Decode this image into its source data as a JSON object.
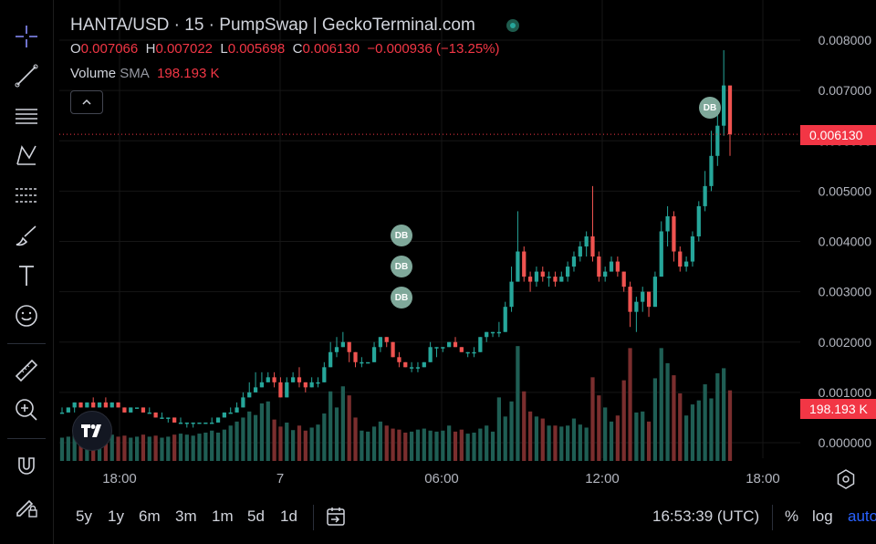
{
  "header": {
    "title": "HANTA/USD · 15 · PumpSwap | GeckoTerminal.com",
    "ohlc": [
      {
        "label": "O",
        "value": "0.007066"
      },
      {
        "label": "H",
        "value": "0.007022"
      },
      {
        "label": "L",
        "value": "0.005698"
      },
      {
        "label": "C",
        "value": "0.006130"
      }
    ],
    "change": "−0.000936 (−13.25%)",
    "volume_label": "Volume",
    "volume_sma_label": "SMA",
    "volume_value": "198.193 K"
  },
  "price_tag": "0.006130",
  "volume_tag": "198.193 K",
  "badges": [
    "DB",
    "DB",
    "DB",
    "DB"
  ],
  "colors": {
    "up": "#26a69a",
    "down": "#ef5350",
    "vol_up": "#1f5e54",
    "vol_down": "#7a2e2e",
    "badge": "#7fa89a"
  },
  "bottom_bar": {
    "ranges": [
      "5y",
      "1y",
      "6m",
      "3m",
      "1m",
      "5d",
      "1d"
    ],
    "time": "16:53:39 (UTC)",
    "percent": "%",
    "log": "log",
    "auto": "auto"
  },
  "chart_data": {
    "type": "candlestick",
    "title": "HANTA/USD · 15 · PumpSwap",
    "y_ticks": [
      "0.008000",
      "0.007000",
      "0.006000",
      "0.005000",
      "0.004000",
      "0.003000",
      "0.002000",
      "0.001000",
      "0.000000"
    ],
    "x_ticks": [
      "18:00",
      "7",
      "06:00",
      "12:00",
      "18:00"
    ],
    "ylim": [
      0.0,
      0.008
    ],
    "last_price": 0.00613,
    "grid": true,
    "candles": [
      [
        0.0006,
        0.0006,
        0.0007,
        0.0006
      ],
      [
        0.0006,
        0.0007,
        0.0007,
        0.0006
      ],
      [
        0.0007,
        0.0008,
        0.0008,
        0.0006
      ],
      [
        0.0008,
        0.0007,
        0.0008,
        0.0007
      ],
      [
        0.0007,
        0.0008,
        0.0008,
        0.0007
      ],
      [
        0.0008,
        0.0007,
        0.0009,
        0.0007
      ],
      [
        0.0007,
        0.0008,
        0.0008,
        0.0007
      ],
      [
        0.0008,
        0.0007,
        0.0009,
        0.0007
      ],
      [
        0.0007,
        0.0008,
        0.0008,
        0.0007
      ],
      [
        0.0008,
        0.0007,
        0.0008,
        0.0007
      ],
      [
        0.0007,
        0.0006,
        0.0007,
        0.0006
      ],
      [
        0.0006,
        0.0007,
        0.0007,
        0.0006
      ],
      [
        0.0007,
        0.0007,
        0.0007,
        0.0007
      ],
      [
        0.0007,
        0.0006,
        0.0007,
        0.0006
      ],
      [
        0.0006,
        0.0006,
        0.0007,
        0.0006
      ],
      [
        0.0006,
        0.0005,
        0.0006,
        0.0005
      ],
      [
        0.0005,
        0.0005,
        0.0006,
        0.0005
      ],
      [
        0.0005,
        0.0005,
        0.0005,
        0.0004
      ],
      [
        0.0005,
        0.0004,
        0.0005,
        0.0004
      ],
      [
        0.0004,
        0.0004,
        0.0005,
        0.0004
      ],
      [
        0.0004,
        0.0004,
        0.0004,
        0.0003
      ],
      [
        0.0004,
        0.0004,
        0.0004,
        0.0003
      ],
      [
        0.0004,
        0.0004,
        0.0004,
        0.0004
      ],
      [
        0.0004,
        0.0004,
        0.0004,
        0.0004
      ],
      [
        0.0004,
        0.0004,
        0.0005,
        0.0004
      ],
      [
        0.0004,
        0.0005,
        0.0005,
        0.0004
      ],
      [
        0.0005,
        0.0006,
        0.0006,
        0.0005
      ],
      [
        0.0006,
        0.0006,
        0.0007,
        0.0006
      ],
      [
        0.0006,
        0.0007,
        0.0008,
        0.0006
      ],
      [
        0.0007,
        0.0009,
        0.001,
        0.0007
      ],
      [
        0.0009,
        0.001,
        0.0012,
        0.0009
      ],
      [
        0.001,
        0.0011,
        0.0014,
        0.001
      ],
      [
        0.0011,
        0.0012,
        0.0014,
        0.0011
      ],
      [
        0.0012,
        0.0013,
        0.0014,
        0.0012
      ],
      [
        0.0013,
        0.0012,
        0.0014,
        0.0011
      ],
      [
        0.0012,
        0.0009,
        0.0013,
        0.0009
      ],
      [
        0.0009,
        0.0012,
        0.0013,
        0.0009
      ],
      [
        0.0012,
        0.0013,
        0.0014,
        0.0012
      ],
      [
        0.0013,
        0.0012,
        0.0015,
        0.0011
      ],
      [
        0.0012,
        0.0011,
        0.0012,
        0.001
      ],
      [
        0.0011,
        0.0012,
        0.0013,
        0.0011
      ],
      [
        0.0012,
        0.0012,
        0.0013,
        0.0011
      ],
      [
        0.0012,
        0.0015,
        0.0016,
        0.0012
      ],
      [
        0.0015,
        0.0018,
        0.002,
        0.0015
      ],
      [
        0.0018,
        0.0019,
        0.0021,
        0.0017
      ],
      [
        0.0019,
        0.002,
        0.0022,
        0.0019
      ],
      [
        0.002,
        0.0018,
        0.002,
        0.0016
      ],
      [
        0.0018,
        0.0016,
        0.0018,
        0.0015
      ],
      [
        0.0016,
        0.0016,
        0.0017,
        0.0015
      ],
      [
        0.0016,
        0.0016,
        0.0016,
        0.0016
      ],
      [
        0.0016,
        0.0019,
        0.002,
        0.0016
      ],
      [
        0.0019,
        0.0021,
        0.0021,
        0.0018
      ],
      [
        0.0021,
        0.002,
        0.0021,
        0.0019
      ],
      [
        0.002,
        0.0017,
        0.002,
        0.0017
      ],
      [
        0.0017,
        0.0016,
        0.0018,
        0.0015
      ],
      [
        0.0016,
        0.0015,
        0.0016,
        0.0015
      ],
      [
        0.0015,
        0.0015,
        0.0016,
        0.0014
      ],
      [
        0.0015,
        0.0015,
        0.0016,
        0.0014
      ],
      [
        0.0015,
        0.0016,
        0.0016,
        0.0015
      ],
      [
        0.0016,
        0.0019,
        0.002,
        0.0016
      ],
      [
        0.0019,
        0.0019,
        0.0019,
        0.0017
      ],
      [
        0.0019,
        0.0019,
        0.0019,
        0.0018
      ],
      [
        0.0019,
        0.002,
        0.002,
        0.0019
      ],
      [
        0.002,
        0.0019,
        0.0021,
        0.0019
      ],
      [
        0.0019,
        0.0018,
        0.0019,
        0.0018
      ],
      [
        0.0018,
        0.0018,
        0.0018,
        0.0017
      ],
      [
        0.0018,
        0.0018,
        0.0019,
        0.0017
      ],
      [
        0.0018,
        0.0021,
        0.0021,
        0.0018
      ],
      [
        0.0021,
        0.0022,
        0.0022,
        0.002
      ],
      [
        0.0022,
        0.0022,
        0.0022,
        0.0021
      ],
      [
        0.0022,
        0.0022,
        0.0024,
        0.0021
      ],
      [
        0.0022,
        0.0027,
        0.0028,
        0.0022
      ],
      [
        0.0027,
        0.0032,
        0.0035,
        0.0026
      ],
      [
        0.0032,
        0.0038,
        0.0046,
        0.0032
      ],
      [
        0.0038,
        0.0033,
        0.0039,
        0.0032
      ],
      [
        0.0033,
        0.0032,
        0.0034,
        0.003
      ],
      [
        0.0032,
        0.0034,
        0.0035,
        0.0031
      ],
      [
        0.0034,
        0.0033,
        0.0035,
        0.0032
      ],
      [
        0.0033,
        0.0033,
        0.0034,
        0.0031
      ],
      [
        0.0033,
        0.0032,
        0.0034,
        0.0031
      ],
      [
        0.0032,
        0.0033,
        0.0034,
        0.0032
      ],
      [
        0.0033,
        0.0035,
        0.0036,
        0.0032
      ],
      [
        0.0035,
        0.0037,
        0.0038,
        0.0034
      ],
      [
        0.0037,
        0.0039,
        0.004,
        0.0036
      ],
      [
        0.0039,
        0.0041,
        0.0042,
        0.0037
      ],
      [
        0.0041,
        0.0037,
        0.0051,
        0.0036
      ],
      [
        0.0037,
        0.0033,
        0.0038,
        0.0032
      ],
      [
        0.0033,
        0.0034,
        0.0035,
        0.0032
      ],
      [
        0.0034,
        0.0036,
        0.0037,
        0.0034
      ],
      [
        0.0036,
        0.0034,
        0.0037,
        0.0033
      ],
      [
        0.0034,
        0.0031,
        0.0034,
        0.003
      ],
      [
        0.0031,
        0.0026,
        0.0032,
        0.0023
      ],
      [
        0.0026,
        0.0028,
        0.0029,
        0.0022
      ],
      [
        0.0028,
        0.003,
        0.0031,
        0.0026
      ],
      [
        0.003,
        0.0027,
        0.003,
        0.0025
      ],
      [
        0.0027,
        0.0033,
        0.0034,
        0.0027
      ],
      [
        0.0033,
        0.0042,
        0.0044,
        0.0033
      ],
      [
        0.0042,
        0.0045,
        0.0047,
        0.0039
      ],
      [
        0.0045,
        0.0038,
        0.0046,
        0.0036
      ],
      [
        0.0038,
        0.0035,
        0.0039,
        0.0034
      ],
      [
        0.0035,
        0.0036,
        0.0037,
        0.0034
      ],
      [
        0.0036,
        0.0041,
        0.0042,
        0.0035
      ],
      [
        0.0041,
        0.0047,
        0.0048,
        0.004
      ],
      [
        0.0047,
        0.0051,
        0.0054,
        0.0046
      ],
      [
        0.0051,
        0.0057,
        0.0062,
        0.005
      ],
      [
        0.0057,
        0.0063,
        0.0068,
        0.0055
      ],
      [
        0.0063,
        0.0071,
        0.0078,
        0.0061
      ],
      [
        0.0071,
        0.00613,
        0.00702,
        0.0057
      ]
    ],
    "volume": [
      0.0001,
      0.00012,
      0.00016,
      0.00018,
      0.0001,
      0.00016,
      0.00018,
      0.0001,
      0.00016,
      0.00012,
      0.00014,
      0.0001,
      0.00012,
      0.00016,
      0.00012,
      0.00014,
      0.0001,
      0.00012,
      0.00016,
      0.00018,
      0.00016,
      0.00014,
      0.00018,
      0.0002,
      0.00024,
      0.0002,
      0.00026,
      0.00034,
      0.00042,
      0.0005,
      0.00062,
      0.00055,
      0.00078,
      0.00082,
      0.00046,
      0.00032,
      0.0004,
      0.00025,
      0.00034,
      0.00024,
      0.0003,
      0.00036,
      0.00058,
      0.00102,
      0.0007,
      0.00112,
      0.00094,
      0.0005,
      0.00024,
      0.00022,
      0.00032,
      0.00042,
      0.00034,
      0.00028,
      0.00026,
      0.0002,
      0.00022,
      0.00026,
      0.00028,
      0.00024,
      0.00022,
      0.00024,
      0.00034,
      0.00022,
      0.00026,
      0.00018,
      0.0002,
      0.00028,
      0.00034,
      0.00022,
      0.0009,
      0.00052,
      0.00082,
      0.00192,
      0.00102,
      0.00062,
      0.00052,
      0.00048,
      0.00034,
      0.00034,
      0.00032,
      0.00034,
      0.00048,
      0.00036,
      0.0003,
      0.0013,
      0.00094,
      0.0007,
      0.00042,
      0.00054,
      0.00124,
      0.00188,
      0.0006,
      0.00062,
      0.00042,
      0.00128,
      0.00188,
      0.00158,
      0.00134,
      0.00098,
      0.00054,
      0.00076,
      0.00084,
      0.00116,
      0.00088,
      0.00138,
      0.00148,
      0.00104
    ]
  }
}
